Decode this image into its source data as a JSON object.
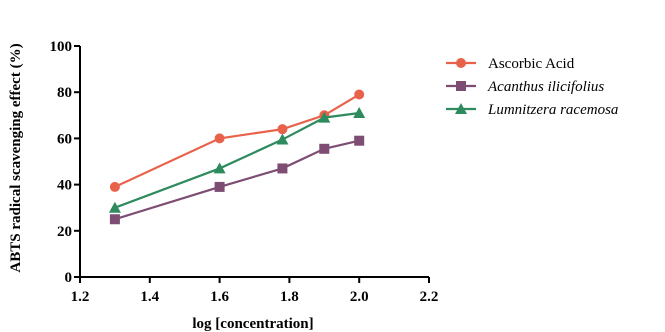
{
  "chart_data": {
    "type": "line",
    "title": "",
    "xlabel": "log [concentration]",
    "ylabel": "ABTS radical scavenging effect (%)",
    "xlim": [
      1.2,
      2.2
    ],
    "ylim": [
      0,
      100
    ],
    "x_ticks": [
      "1.2",
      "1.4",
      "1.6",
      "1.8",
      "2.0",
      "2.2"
    ],
    "y_ticks": [
      "0",
      "20",
      "40",
      "60",
      "80",
      "100"
    ],
    "grid": false,
    "legend_position": "right",
    "series": [
      {
        "name": "Ascorbic Acid",
        "italic": false,
        "color": "#e8624a",
        "marker": "circle",
        "x": [
          1.3,
          1.6,
          1.78,
          1.9,
          2.0
        ],
        "y": [
          39,
          60,
          64,
          70,
          79
        ]
      },
      {
        "name": "Acanthus ilicifolius",
        "italic": true,
        "color": "#7d4d74",
        "marker": "square",
        "x": [
          1.3,
          1.6,
          1.78,
          1.9,
          2.0
        ],
        "y": [
          25,
          39,
          47,
          55.5,
          59
        ]
      },
      {
        "name": "Lumnitzera racemosa",
        "italic": true,
        "color": "#2e8b5e",
        "marker": "triangle",
        "x": [
          1.3,
          1.6,
          1.78,
          1.9,
          2.0
        ],
        "y": [
          30,
          47,
          59.5,
          69,
          71
        ]
      }
    ]
  }
}
